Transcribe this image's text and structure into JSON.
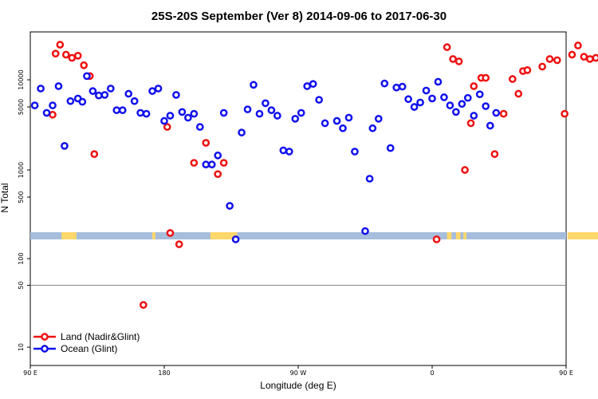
{
  "chart_data": {
    "type": "scatter",
    "title": "25S-20S September (Ver 8)   2014-09-06 to 2017-06-30",
    "xlabel": "Longitude (deg E)",
    "ylabel": "N Total",
    "x_axis": {
      "range": [
        90,
        450
      ],
      "ticks": [
        {
          "value": 90,
          "label": "90 E"
        },
        {
          "value": 180,
          "label": "180"
        },
        {
          "value": 270,
          "label": "90 W"
        },
        {
          "value": 360,
          "label": "0"
        },
        {
          "value": 450,
          "label": "90 E"
        },
        {
          "value": 540,
          "label": "180"
        }
      ]
    },
    "y_axis_upper": {
      "scale": "log",
      "ticks": [
        {
          "value": 500,
          "label": "500"
        },
        {
          "value": 1000,
          "label": "1000"
        },
        {
          "value": 5000,
          "label": "5000"
        },
        {
          "value": 10000,
          "label": "10000"
        }
      ]
    },
    "y_axis_lower": {
      "scale": "log",
      "ticks": [
        {
          "value": 10,
          "label": "10"
        },
        {
          "value": 50,
          "label": "50"
        },
        {
          "value": 100,
          "label": "100"
        }
      ],
      "reference_line": 50
    },
    "land_mask_colors": {
      "ocean": "#a6bddb",
      "land": "#fdd76b"
    },
    "series": [
      {
        "name": "Land (Nadir&Glint)",
        "color": "#ee1111",
        "points": [
          [
            105,
            4100
          ],
          [
            107,
            19500
          ],
          [
            110,
            24500
          ],
          [
            114,
            19000
          ],
          [
            118,
            17500
          ],
          [
            122,
            18500
          ],
          [
            126,
            14500
          ],
          [
            130,
            11000
          ],
          [
            133,
            1500
          ],
          [
            166,
            30
          ],
          [
            182,
            3000
          ],
          [
            184,
            200
          ],
          [
            190,
            150
          ],
          [
            200,
            1200
          ],
          [
            208,
            2000
          ],
          [
            216,
            900
          ],
          [
            220,
            1200
          ],
          [
            363,
            170
          ],
          [
            370,
            23000
          ],
          [
            374,
            17000
          ],
          [
            378,
            16000
          ],
          [
            382,
            1000
          ],
          [
            386,
            3300
          ],
          [
            388,
            8500
          ],
          [
            393,
            10500
          ],
          [
            396,
            10500
          ],
          [
            402,
            1500
          ],
          [
            408,
            4200
          ],
          [
            414,
            10200
          ],
          [
            418,
            7000
          ],
          [
            421,
            12500
          ],
          [
            424,
            12800
          ],
          [
            434,
            14000
          ],
          [
            439,
            17000
          ],
          [
            444,
            16500
          ],
          [
            449,
            4200
          ],
          [
            454,
            19000
          ],
          [
            458,
            24000
          ],
          [
            462,
            18000
          ],
          [
            466,
            17000
          ],
          [
            470,
            17500
          ],
          [
            474,
            14500
          ],
          [
            478,
            11000
          ],
          [
            482,
            1500
          ]
        ]
      },
      {
        "name": "Ocean (Glint)",
        "color": "#1111ee",
        "points": [
          [
            93,
            5200
          ],
          [
            97,
            8000
          ],
          [
            101,
            4300
          ],
          [
            105,
            5200
          ],
          [
            109,
            8500
          ],
          [
            113,
            1850
          ],
          [
            117,
            5800
          ],
          [
            122,
            6200
          ],
          [
            125,
            5700
          ],
          [
            128,
            11000
          ],
          [
            132,
            7500
          ],
          [
            136,
            6700
          ],
          [
            140,
            6800
          ],
          [
            144,
            8000
          ],
          [
            148,
            4600
          ],
          [
            152,
            4600
          ],
          [
            156,
            7000
          ],
          [
            160,
            5800
          ],
          [
            164,
            4300
          ],
          [
            168,
            4200
          ],
          [
            172,
            7500
          ],
          [
            176,
            8000
          ],
          [
            180,
            3500
          ],
          [
            184,
            4000
          ],
          [
            188,
            6800
          ],
          [
            192,
            4400
          ],
          [
            196,
            3800
          ],
          [
            200,
            4200
          ],
          [
            204,
            3000
          ],
          [
            208,
            1150
          ],
          [
            212,
            1150
          ],
          [
            216,
            1450
          ],
          [
            220,
            4300
          ],
          [
            224,
            400
          ],
          [
            228,
            170
          ],
          [
            232,
            2600
          ],
          [
            236,
            4700
          ],
          [
            240,
            8800
          ],
          [
            244,
            4200
          ],
          [
            248,
            5500
          ],
          [
            252,
            4600
          ],
          [
            256,
            4000
          ],
          [
            260,
            1650
          ],
          [
            264,
            1600
          ],
          [
            268,
            3700
          ],
          [
            272,
            4300
          ],
          [
            276,
            8500
          ],
          [
            280,
            9000
          ],
          [
            284,
            6000
          ],
          [
            288,
            3300
          ],
          [
            296,
            3500
          ],
          [
            300,
            2900
          ],
          [
            304,
            3800
          ],
          [
            308,
            1600
          ],
          [
            315,
            210
          ],
          [
            318,
            800
          ],
          [
            320,
            2900
          ],
          [
            324,
            3700
          ],
          [
            328,
            9100
          ],
          [
            332,
            1750
          ],
          [
            336,
            8200
          ],
          [
            340,
            8400
          ],
          [
            344,
            6100
          ],
          [
            348,
            5000
          ],
          [
            352,
            5600
          ],
          [
            356,
            7600
          ],
          [
            360,
            6200
          ],
          [
            364,
            9500
          ],
          [
            368,
            6400
          ],
          [
            372,
            5200
          ],
          [
            376,
            4400
          ],
          [
            380,
            5400
          ],
          [
            384,
            6300
          ],
          [
            388,
            4000
          ],
          [
            392,
            6900
          ],
          [
            396,
            5100
          ],
          [
            399,
            3100
          ],
          [
            403,
            4300
          ]
        ]
      }
    ],
    "legend": {
      "placement": "bottom-left",
      "entries": [
        "Land (Nadir&Glint)",
        "Ocean (Glint)"
      ]
    }
  }
}
